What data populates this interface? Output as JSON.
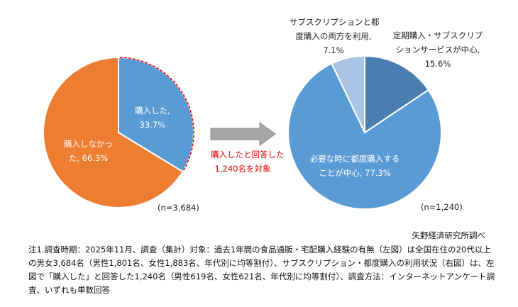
{
  "chart_data": [
    {
      "type": "pie",
      "slices": [
        {
          "label": "購入した",
          "value": 33.7,
          "display": "33.7%",
          "color": "#5b9bd5"
        },
        {
          "label": "購入しなかった",
          "value": 66.3,
          "display": "66.3%",
          "color": "#ed7d31"
        }
      ],
      "n_label": "(n=3,684)",
      "highlight_color": "#e00000"
    },
    {
      "type": "pie",
      "slices": [
        {
          "label": "定期購入・サブスクリプションサービスが中心",
          "value": 15.6,
          "display": "15.6%",
          "color": "#4a7eb0"
        },
        {
          "label": "必要な時に都度購入することが中心",
          "value": 77.3,
          "display": "77.3%",
          "color": "#5b9bd5"
        },
        {
          "label": "サブスクリプションと都度購入の両方を利用",
          "value": 7.1,
          "display": "7.1%",
          "color": "#a9c4e4"
        }
      ],
      "n_label": "(n=1,240)"
    }
  ],
  "labels": {
    "left_bought_1": "購入した,",
    "left_bought_2": "33.7%",
    "left_not_1": "購入しなかっ",
    "left_not_2": "た, 66.3%",
    "left_n": "(n=3,684)",
    "arrow_1": "購入したと回答した",
    "arrow_2": "1,240名を対象",
    "right_both_1": "サブスクリプションと都",
    "right_both_2": "度購入の両方を利用,",
    "right_both_3": "7.1%",
    "right_sub_1": "定期購入・サブスクリプ",
    "right_sub_2": "ションサービスが中心,",
    "right_sub_3": "15.6%",
    "right_each_1": "必要な時に都度購入する",
    "right_each_2": "ことが中心, 77.3%",
    "right_n": "(n=1,240)"
  },
  "source": "矢野経済研究所調べ",
  "note": "注1.調査時期：2025年11月、調査（集計）対象：過去1年間の食品通販・宅配購入経験の有無（左図）は全国在住の20代以上の男女3,684名（男性1,801名、女性1,883名、年代別に均等割付）、サブスクリプション・都度購入の利用状況（右図）は、左図で「購入した」と回答した1,240名（男性619名、女性621名、年代別に均等割付）、調査方法：インターネットアンケート調査、いずれも単数回答"
}
